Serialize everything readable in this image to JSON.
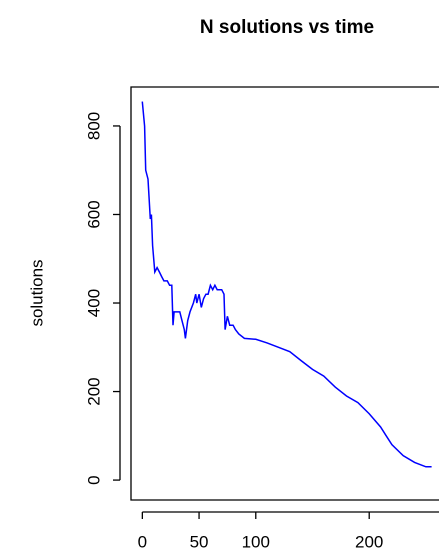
{
  "chart_data": {
    "type": "line",
    "title": "N solutions vs time",
    "y_label": "solutions",
    "x": [
      0,
      2,
      3,
      5,
      7,
      8,
      9,
      11,
      13,
      15,
      17,
      19,
      22,
      24,
      26,
      27,
      28,
      30,
      33,
      35,
      37,
      38,
      40,
      42,
      45,
      47,
      48,
      50,
      52,
      54,
      56,
      58,
      60,
      62,
      64,
      66,
      70,
      72,
      73,
      75,
      77,
      80,
      82,
      85,
      90,
      100,
      110,
      120,
      130,
      140,
      150,
      160,
      170,
      180,
      190,
      200,
      210,
      215,
      220,
      230,
      240,
      250,
      255
    ],
    "values": [
      855,
      800,
      700,
      680,
      590,
      600,
      530,
      470,
      480,
      470,
      460,
      450,
      450,
      440,
      440,
      350,
      380,
      380,
      380,
      360,
      340,
      320,
      360,
      380,
      400,
      420,
      400,
      420,
      390,
      410,
      420,
      420,
      440,
      430,
      440,
      430,
      430,
      420,
      340,
      370,
      350,
      350,
      340,
      330,
      320,
      318,
      310,
      300,
      290,
      270,
      250,
      235,
      210,
      190,
      175,
      150,
      120,
      100,
      80,
      55,
      40,
      30,
      30
    ],
    "color": "#0000ff",
    "xlim": [
      -10,
      258
    ],
    "ylim": [
      -45,
      888
    ],
    "xticks": [
      0,
      50,
      100,
      200
    ],
    "yticks": [
      0,
      200,
      400,
      600,
      800
    ]
  }
}
